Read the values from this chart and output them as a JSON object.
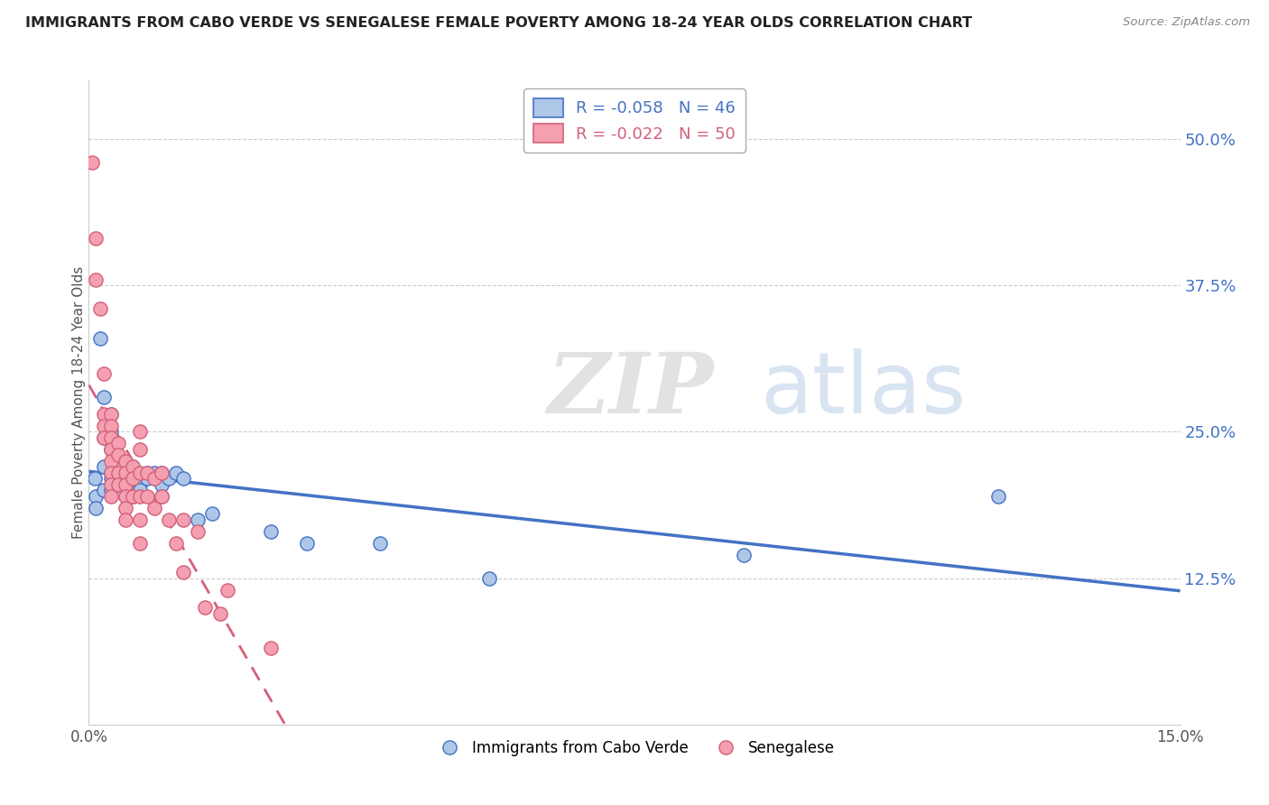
{
  "title": "IMMIGRANTS FROM CABO VERDE VS SENEGALESE FEMALE POVERTY AMONG 18-24 YEAR OLDS CORRELATION CHART",
  "source": "Source: ZipAtlas.com",
  "ylabel": "Female Poverty Among 18-24 Year Olds",
  "yticks": [
    "12.5%",
    "25.0%",
    "37.5%",
    "50.0%"
  ],
  "ytick_values": [
    0.125,
    0.25,
    0.375,
    0.5
  ],
  "legend_entries": [
    {
      "label": "Immigrants from Cabo Verde",
      "color": "#aec6e8",
      "edge": "#4472c4",
      "R": "-0.058",
      "N": "46"
    },
    {
      "label": "Senegalese",
      "color": "#f4a0b0",
      "edge": "#d4607a",
      "R": "-0.022",
      "N": "50"
    }
  ],
  "cabo_verde_points": [
    [
      0.0008,
      0.21
    ],
    [
      0.001,
      0.195
    ],
    [
      0.001,
      0.185
    ],
    [
      0.0015,
      0.33
    ],
    [
      0.002,
      0.28
    ],
    [
      0.002,
      0.245
    ],
    [
      0.002,
      0.22
    ],
    [
      0.002,
      0.2
    ],
    [
      0.003,
      0.265
    ],
    [
      0.003,
      0.25
    ],
    [
      0.003,
      0.235
    ],
    [
      0.003,
      0.215
    ],
    [
      0.003,
      0.21
    ],
    [
      0.003,
      0.2
    ],
    [
      0.004,
      0.22
    ],
    [
      0.004,
      0.21
    ],
    [
      0.004,
      0.205
    ],
    [
      0.005,
      0.215
    ],
    [
      0.005,
      0.21
    ],
    [
      0.005,
      0.205
    ],
    [
      0.005,
      0.195
    ],
    [
      0.006,
      0.22
    ],
    [
      0.006,
      0.21
    ],
    [
      0.006,
      0.2
    ],
    [
      0.006,
      0.195
    ],
    [
      0.007,
      0.21
    ],
    [
      0.007,
      0.205
    ],
    [
      0.007,
      0.2
    ],
    [
      0.008,
      0.215
    ],
    [
      0.008,
      0.21
    ],
    [
      0.009,
      0.215
    ],
    [
      0.009,
      0.21
    ],
    [
      0.01,
      0.215
    ],
    [
      0.01,
      0.205
    ],
    [
      0.01,
      0.195
    ],
    [
      0.011,
      0.21
    ],
    [
      0.012,
      0.215
    ],
    [
      0.013,
      0.21
    ],
    [
      0.015,
      0.175
    ],
    [
      0.017,
      0.18
    ],
    [
      0.025,
      0.165
    ],
    [
      0.03,
      0.155
    ],
    [
      0.04,
      0.155
    ],
    [
      0.055,
      0.125
    ],
    [
      0.09,
      0.145
    ],
    [
      0.125,
      0.195
    ]
  ],
  "senegalese_points": [
    [
      0.0005,
      0.48
    ],
    [
      0.001,
      0.415
    ],
    [
      0.001,
      0.38
    ],
    [
      0.0015,
      0.355
    ],
    [
      0.002,
      0.3
    ],
    [
      0.002,
      0.265
    ],
    [
      0.002,
      0.255
    ],
    [
      0.002,
      0.245
    ],
    [
      0.003,
      0.265
    ],
    [
      0.003,
      0.255
    ],
    [
      0.003,
      0.245
    ],
    [
      0.003,
      0.235
    ],
    [
      0.003,
      0.225
    ],
    [
      0.003,
      0.215
    ],
    [
      0.003,
      0.205
    ],
    [
      0.003,
      0.195
    ],
    [
      0.004,
      0.24
    ],
    [
      0.004,
      0.23
    ],
    [
      0.004,
      0.215
    ],
    [
      0.004,
      0.205
    ],
    [
      0.005,
      0.225
    ],
    [
      0.005,
      0.215
    ],
    [
      0.005,
      0.205
    ],
    [
      0.005,
      0.195
    ],
    [
      0.005,
      0.185
    ],
    [
      0.005,
      0.175
    ],
    [
      0.006,
      0.22
    ],
    [
      0.006,
      0.21
    ],
    [
      0.006,
      0.195
    ],
    [
      0.007,
      0.25
    ],
    [
      0.007,
      0.235
    ],
    [
      0.007,
      0.215
    ],
    [
      0.007,
      0.195
    ],
    [
      0.007,
      0.175
    ],
    [
      0.007,
      0.155
    ],
    [
      0.008,
      0.215
    ],
    [
      0.008,
      0.195
    ],
    [
      0.009,
      0.21
    ],
    [
      0.009,
      0.185
    ],
    [
      0.01,
      0.215
    ],
    [
      0.01,
      0.195
    ],
    [
      0.011,
      0.175
    ],
    [
      0.012,
      0.155
    ],
    [
      0.013,
      0.175
    ],
    [
      0.013,
      0.13
    ],
    [
      0.015,
      0.165
    ],
    [
      0.016,
      0.1
    ],
    [
      0.018,
      0.095
    ],
    [
      0.019,
      0.115
    ],
    [
      0.025,
      0.065
    ]
  ],
  "cabo_color": "#aec6e8",
  "senegalese_color": "#f4a0b0",
  "cabo_line_color": "#4472c4",
  "senegalese_line_color": "#d4607a",
  "background_color": "#ffffff",
  "watermark_zip": "ZIP",
  "watermark_atlas": "atlas",
  "xlim": [
    0.0,
    0.15
  ],
  "ylim": [
    0.0,
    0.55
  ],
  "figsize": [
    14.06,
    8.92
  ],
  "dpi": 100
}
